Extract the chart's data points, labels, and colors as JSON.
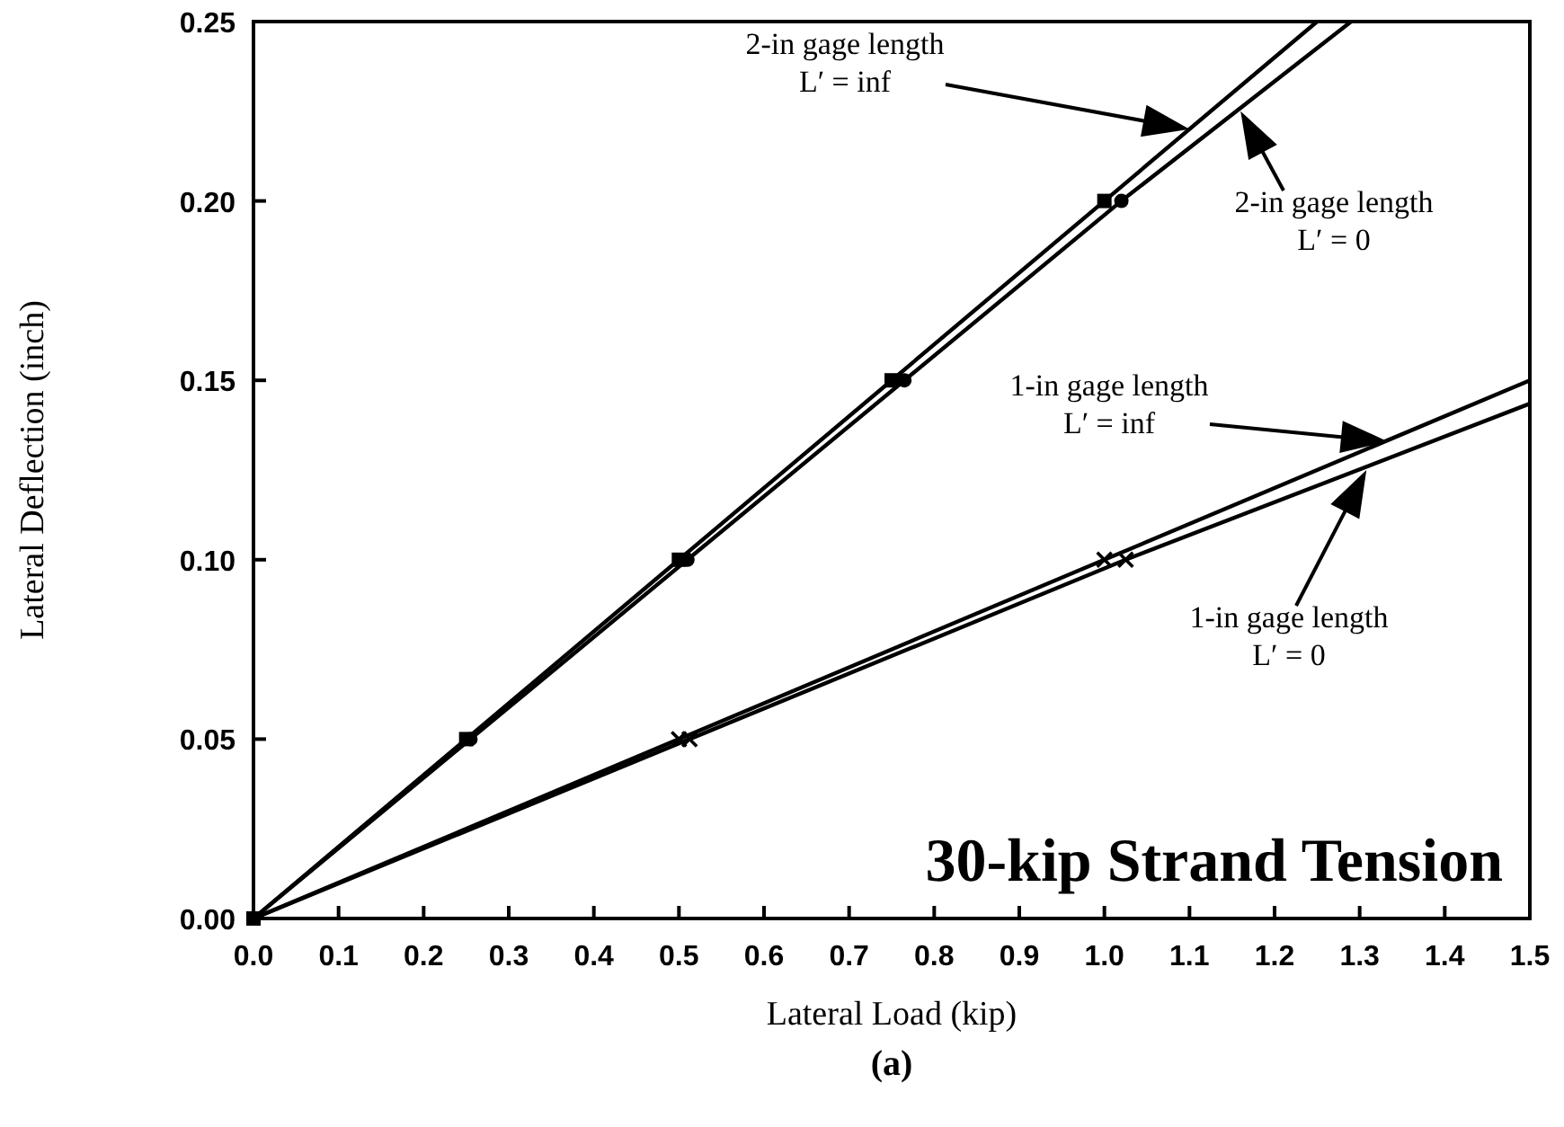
{
  "chart_data": {
    "type": "line",
    "title": "30-kip Strand Tension",
    "xlabel": "Lateral Load (kip)",
    "ylabel": "Lateral Deflection (inch)",
    "annotations": [
      "2-in gage length\nL′ = inf",
      "2-in gage length\nL′ = 0",
      "1-in gage length\nL′ = inf",
      "1-in gage length\nL′ = 0",
      "(a)"
    ],
    "grid": false,
    "xlim": [
      0,
      1.5
    ],
    "xticks": [
      {
        "value": 0,
        "label": "0.0"
      },
      0.1,
      0.2,
      0.3,
      0.4,
      0.5,
      0.6,
      0.7,
      0.8,
      0.9,
      {
        "value": 1,
        "label": "1.0"
      },
      1.1,
      1.2,
      1.3,
      1.4,
      1.5
    ],
    "ylim": [
      0,
      0.25
    ],
    "yticks": [
      {
        "value": 0,
        "label": "0.00"
      },
      0.05,
      {
        "value": 0.1,
        "label": "0.10"
      },
      0.15,
      {
        "value": 0.2,
        "label": "0.20"
      },
      0.25
    ],
    "line_style": "solid",
    "series": [
      {
        "color": "#000000",
        "marker": "square",
        "x": [
          0,
          0.25,
          0.5,
          0.75,
          1.0,
          1.25
        ],
        "values": [
          0,
          0.05,
          0.1,
          0.15,
          0.2,
          0.25
        ]
      },
      {
        "color": "#000000",
        "marker": "circle",
        "x": [
          0,
          0.255,
          0.51,
          0.765,
          1.02,
          1.29
        ],
        "values": [
          0,
          0.05,
          0.1,
          0.15,
          0.2,
          0.25
        ]
      },
      {
        "color": "#000000",
        "marker": "cross",
        "x": [
          0,
          0.5,
          1.0,
          1.5
        ],
        "values": [
          0,
          0.05,
          0.1,
          0.15
        ]
      },
      {
        "color": "#000000",
        "marker": "cross",
        "x": [
          0,
          0.5125,
          1.025,
          1.5
        ],
        "values": [
          0,
          0.05,
          0.1,
          0.1435
        ]
      }
    ]
  }
}
